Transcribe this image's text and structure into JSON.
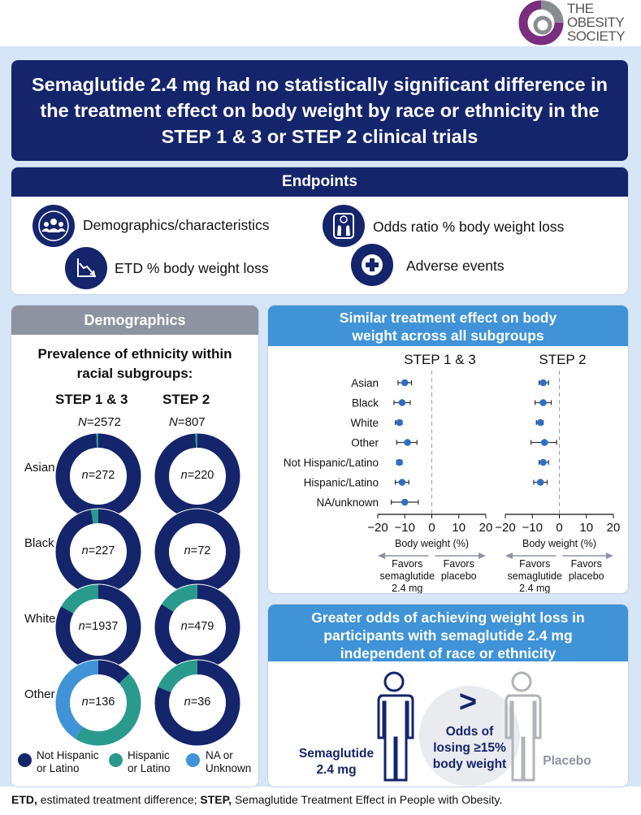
{
  "logo": {
    "line1": "THE",
    "line2": "OBESITY",
    "line3": "SOCIETY"
  },
  "title": "Semaglutide 2.4 mg had no statistically significant difference in the treatment effect  on body weight by race or ethnicity in the STEP 1 & 3 or STEP 2 clinical trials",
  "endpoints": {
    "heading": "Endpoints",
    "items": [
      {
        "label": "Demographics/characteristics",
        "icon": "people-icon"
      },
      {
        "label": "Odds ratio % body weight loss",
        "icon": "scale-icon"
      },
      {
        "label": "ETD % body weight loss",
        "icon": "declining-chart-icon"
      },
      {
        "label": "Adverse events",
        "icon": "medical-cross-icon"
      }
    ]
  },
  "demographics": {
    "heading": "Demographics",
    "subtitle_line1": "Prevalence of ethnicity within",
    "subtitle_line2": "racial subgroups:",
    "col1": "STEP 1 & 3",
    "col2": "STEP 2",
    "n_prefix": "N",
    "n_eq": "=",
    "n1": "2572",
    "n2": "807",
    "n_small": "n",
    "rows": [
      {
        "race": "Asian",
        "step13": {
          "n": "272",
          "not_hisp": 0.99,
          "hisp": 0.01,
          "na": 0.0
        },
        "step2": {
          "n": "220",
          "not_hisp": 0.99,
          "hisp": 0.01,
          "na": 0.0
        }
      },
      {
        "race": "Black",
        "step13": {
          "n": "227",
          "not_hisp": 0.97,
          "hisp": 0.03,
          "na": 0.0
        },
        "step2": {
          "n": "72",
          "not_hisp": 1.0,
          "hisp": 0.0,
          "na": 0.0
        }
      },
      {
        "race": "White",
        "step13": {
          "n": "1937",
          "not_hisp": 0.83,
          "hisp": 0.17,
          "na": 0.0
        },
        "step2": {
          "n": "479",
          "not_hisp": 0.84,
          "hisp": 0.16,
          "na": 0.0
        }
      },
      {
        "race": "Other",
        "step13": {
          "n": "136",
          "not_hisp": 0.13,
          "hisp": 0.46,
          "na": 0.41
        },
        "step2": {
          "n": "36",
          "not_hisp": 0.81,
          "hisp": 0.19,
          "na": 0.0
        }
      }
    ],
    "legend": [
      {
        "line1": "Not Hispanic",
        "line2": "or Latino",
        "color": "#15256b"
      },
      {
        "line1": "Hispanic",
        "line2": "or Latino",
        "color": "#2a9a8c"
      },
      {
        "line1": "NA or",
        "line2": "Unknown",
        "color": "#3f93d6"
      }
    ]
  },
  "forest": {
    "heading_line1": "Similar treatment effect on body",
    "heading_line2": "weight across all subgroups",
    "panel1_title": "STEP 1 & 3",
    "panel2_title": "STEP 2",
    "xlabel": "Body weight (%)",
    "favors_left_line1": "Favors",
    "favors_left_line2": "semaglutide",
    "favors_left_line3": "2.4 mg",
    "favors_right_line1": "Favors",
    "favors_right_line2": "placebo",
    "ticks": [
      "−20",
      "−10",
      "0",
      "10",
      "20"
    ],
    "xlim": [
      -20,
      20
    ],
    "categories": [
      "Asian",
      "Black",
      "White",
      "Other",
      "Not Hispanic/Latino",
      "Hispanic/Latino",
      "NA/unknown"
    ],
    "step13": [
      {
        "est": -10.0,
        "lo": -12.5,
        "hi": -7.5
      },
      {
        "est": -11.0,
        "lo": -14.0,
        "hi": -8.0
      },
      {
        "est": -12.0,
        "lo": -13.5,
        "hi": -11.0
      },
      {
        "est": -9.0,
        "lo": -13.0,
        "hi": -5.5
      },
      {
        "est": -12.0,
        "lo": -13.0,
        "hi": -11.0
      },
      {
        "est": -11.0,
        "lo": -13.5,
        "hi": -8.5
      },
      {
        "est": -10.0,
        "lo": -15.0,
        "hi": -5.0
      }
    ],
    "step2": [
      {
        "est": -6.0,
        "lo": -7.5,
        "hi": -4.0
      },
      {
        "est": -6.0,
        "lo": -9.0,
        "hi": -3.0
      },
      {
        "est": -7.0,
        "lo": -8.5,
        "hi": -6.0
      },
      {
        "est": -5.5,
        "lo": -10.5,
        "hi": -1.0
      },
      {
        "est": -6.0,
        "lo": -7.5,
        "hi": -4.0
      },
      {
        "est": -7.0,
        "lo": -9.5,
        "hi": -4.5
      },
      null
    ],
    "marker_color": "#2f6fc4"
  },
  "odds": {
    "heading_line1": "Greater odds of achieving weight loss in",
    "heading_line2": "participants with semaglutide 2.4 mg",
    "heading_line3": "independent of race or ethnicity",
    "symbol": ">",
    "center_line1": "Odds of",
    "center_line2": "losing ≥15%",
    "center_line3": "body weight",
    "left_line1": "Semaglutide",
    "left_line2": "2.4 mg",
    "right_label": "Placebo"
  },
  "footer": {
    "b1": "ETD,",
    "t1": " estimated treatment difference; ",
    "b2": "STEP,",
    "t2": " Semaglutide Treatment Effect in People with Obesity."
  }
}
